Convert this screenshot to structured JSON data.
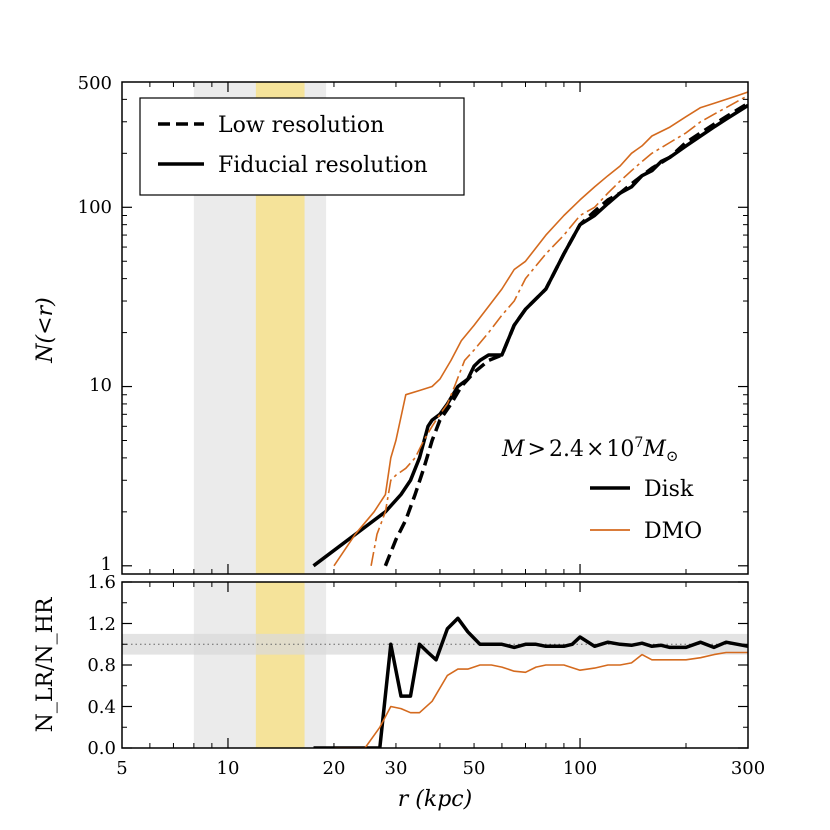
{
  "chart_data": [
    {
      "type": "line",
      "panel": "top",
      "xscale": "log",
      "yscale": "log",
      "xlim": [
        5,
        300
      ],
      "ylim": [
        0.9,
        500
      ],
      "ylabel": "N(<r)",
      "yticks": [
        {
          "value": 1,
          "label": "1"
        },
        {
          "value": 10,
          "label": "10"
        },
        {
          "value": 100,
          "label": "100"
        },
        {
          "value": 500,
          "label": "500"
        }
      ],
      "legend_lines": [
        {
          "name": "Low resolution",
          "style": "dashed"
        },
        {
          "name": "Fiducial resolution",
          "style": "solid"
        }
      ],
      "legend_lines_position": "top-left",
      "mass_annotation": {
        "prefix": "M",
        "relation": ">",
        "value": "2.4",
        "times": "×",
        "base": "10",
        "exponent": "7",
        "unit": "M",
        "unit_sub": "⊙"
      },
      "legend_colors": [
        {
          "name": "Disk",
          "color": "#000000"
        },
        {
          "name": "DMO",
          "color": "#d46a1e"
        }
      ],
      "legend_colors_position": "right",
      "bands": [
        {
          "x0": 8,
          "x1": 19,
          "color": "#ebebeb"
        },
        {
          "x0": 12,
          "x1": 16.5,
          "color": "#f5e39a"
        }
      ],
      "series": [
        {
          "name": "Disk fiducial",
          "color": "#000000",
          "style": "solid",
          "width": 3.5,
          "x": [
            17.5,
            28,
            31,
            33,
            35,
            37,
            38,
            40,
            42,
            45,
            48,
            50,
            52,
            55,
            60,
            65,
            70,
            80,
            90,
            100,
            110,
            120,
            130,
            140,
            150,
            160,
            170,
            180,
            200,
            220,
            240,
            260,
            280,
            300
          ],
          "y": [
            1,
            2,
            2.5,
            3,
            4,
            6,
            6.5,
            7,
            8,
            10,
            11,
            13,
            14,
            15,
            15,
            22,
            27,
            35,
            55,
            80,
            90,
            105,
            120,
            130,
            150,
            160,
            180,
            190,
            220,
            250,
            280,
            310,
            340,
            370
          ]
        },
        {
          "name": "Disk low resolution",
          "color": "#000000",
          "style": "dashed",
          "width": 3.5,
          "x": [
            28,
            30,
            32,
            34,
            36,
            38,
            40,
            43,
            46,
            50,
            55,
            60,
            65,
            70,
            80,
            90,
            100,
            110,
            120,
            130,
            140,
            150,
            160,
            180,
            200,
            220,
            240,
            260,
            280,
            300
          ],
          "y": [
            1,
            1.4,
            1.8,
            2.5,
            3.5,
            5,
            6.5,
            8,
            10,
            12,
            14,
            15,
            22,
            27,
            35,
            55,
            80,
            95,
            110,
            120,
            135,
            150,
            165,
            190,
            230,
            260,
            290,
            320,
            350,
            380
          ]
        },
        {
          "name": "DMO fiducial",
          "color": "#d46a1e",
          "style": "solid",
          "width": 1.6,
          "x": [
            20,
            23,
            26,
            28,
            29,
            30,
            32,
            35,
            38,
            40,
            43,
            46,
            50,
            55,
            60,
            65,
            70,
            80,
            90,
            100,
            110,
            120,
            130,
            140,
            150,
            160,
            180,
            200,
            220,
            240,
            260,
            280,
            300
          ],
          "y": [
            1,
            1.5,
            2,
            2.5,
            4,
            5,
            9,
            9.5,
            10,
            11,
            14,
            18,
            22,
            28,
            35,
            45,
            50,
            70,
            90,
            110,
            130,
            150,
            170,
            200,
            220,
            250,
            280,
            320,
            360,
            380,
            400,
            420,
            440
          ]
        },
        {
          "name": "DMO low resolution",
          "color": "#d46a1e",
          "style": "dashdot",
          "width": 1.6,
          "x": [
            25.5,
            26.5,
            28,
            29,
            30,
            32,
            34,
            36,
            38,
            40,
            42,
            44,
            47,
            50,
            55,
            60,
            65,
            70,
            80,
            90,
            100,
            110,
            120,
            130,
            140,
            150,
            160,
            180,
            200,
            220,
            240,
            260,
            280,
            300
          ],
          "y": [
            1,
            1.5,
            2,
            3,
            3.2,
            3.5,
            4,
            5,
            6,
            7,
            8,
            10,
            14,
            16,
            20,
            25,
            30,
            40,
            55,
            70,
            90,
            100,
            120,
            140,
            160,
            180,
            200,
            230,
            260,
            300,
            330,
            360,
            390,
            420
          ]
        }
      ]
    },
    {
      "type": "line",
      "panel": "bottom",
      "xscale": "log",
      "xlim": [
        5,
        300
      ],
      "ylim": [
        0,
        1.6
      ],
      "xlabel": "r (kpc)",
      "ylabel": "N_LR/N_HR",
      "xticks": [
        {
          "value": 5,
          "label": "5"
        },
        {
          "value": 10,
          "label": "10"
        },
        {
          "value": 20,
          "label": "20"
        },
        {
          "value": 30,
          "label": "30"
        },
        {
          "value": 50,
          "label": "50"
        },
        {
          "value": 100,
          "label": "100"
        },
        {
          "value": 300,
          "label": "300"
        }
      ],
      "yticks": [
        {
          "value": 0.0,
          "label": "0.0"
        },
        {
          "value": 0.4,
          "label": "0.4"
        },
        {
          "value": 0.8,
          "label": "0.8"
        },
        {
          "value": 1.2,
          "label": "1.2"
        },
        {
          "value": 1.6,
          "label": "1.6"
        }
      ],
      "reference_line": {
        "y": 1.0,
        "style": "dotted"
      },
      "reference_band": {
        "y0": 0.9,
        "y1": 1.1,
        "color": "#d9d9d9"
      },
      "bands": [
        {
          "x0": 8,
          "x1": 19,
          "color": "#ebebeb"
        },
        {
          "x0": 12,
          "x1": 16.5,
          "color": "#f5e39a"
        }
      ],
      "series": [
        {
          "name": "Disk",
          "color": "#000000",
          "style": "solid",
          "width": 3.5,
          "x": [
            17.5,
            27,
            29,
            31,
            33,
            35,
            37,
            39,
            42,
            45,
            48,
            52,
            56,
            60,
            65,
            70,
            75,
            80,
            90,
            95,
            100,
            110,
            120,
            130,
            140,
            150,
            160,
            170,
            180,
            200,
            220,
            240,
            260,
            280,
            300
          ],
          "y": [
            0,
            0,
            1.0,
            0.5,
            0.5,
            1.0,
            0.92,
            0.85,
            1.15,
            1.25,
            1.12,
            1.0,
            1.0,
            1.0,
            0.97,
            1.0,
            1.0,
            0.98,
            0.98,
            1.0,
            1.07,
            0.98,
            1.02,
            1.0,
            0.99,
            1.01,
            0.98,
            0.99,
            0.97,
            0.97,
            1.02,
            0.97,
            1.02,
            1.0,
            0.98
          ]
        },
        {
          "name": "DMO",
          "color": "#d46a1e",
          "style": "solid",
          "width": 1.6,
          "x": [
            20,
            24.5,
            27,
            29,
            31,
            33,
            35,
            38,
            42,
            45,
            48,
            52,
            56,
            60,
            65,
            70,
            75,
            80,
            90,
            100,
            110,
            120,
            130,
            140,
            150,
            160,
            180,
            200,
            220,
            240,
            260,
            280,
            300
          ],
          "y": [
            0,
            0,
            0.2,
            0.4,
            0.38,
            0.34,
            0.34,
            0.45,
            0.7,
            0.76,
            0.76,
            0.8,
            0.8,
            0.78,
            0.74,
            0.73,
            0.78,
            0.8,
            0.8,
            0.75,
            0.77,
            0.8,
            0.8,
            0.82,
            0.9,
            0.85,
            0.85,
            0.85,
            0.87,
            0.9,
            0.92,
            0.92,
            0.92
          ]
        }
      ]
    }
  ]
}
